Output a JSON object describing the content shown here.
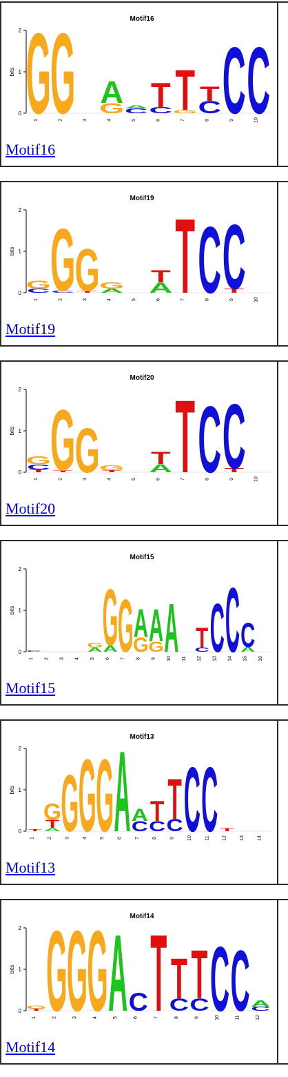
{
  "motifs": [
    {
      "link": "Motif16",
      "title": "Motif16",
      "n": 10,
      "stacks": [
        [
          [
            "G",
            2.0
          ]
        ],
        [
          [
            "G",
            2.0
          ]
        ],
        [],
        [
          [
            "G",
            0.25
          ],
          [
            "A",
            0.55
          ]
        ],
        [
          [
            "C",
            0.12
          ],
          [
            "A",
            0.08
          ]
        ],
        [
          [
            "C",
            0.15
          ],
          [
            "T",
            0.6
          ]
        ],
        [
          [
            "G",
            0.08
          ],
          [
            "T",
            1.0
          ]
        ],
        [
          [
            "C",
            0.3
          ],
          [
            "T",
            0.35
          ]
        ],
        [
          [
            "C",
            1.65
          ]
        ],
        [
          [
            "C",
            1.65
          ]
        ]
      ]
    },
    {
      "link": "Motif19",
      "title": "Motif19",
      "n": 10,
      "stacks": [
        [
          [
            "C",
            0.1
          ],
          [
            "G",
            0.2
          ]
        ],
        [
          [
            "C",
            0.05
          ],
          [
            "G",
            1.55
          ]
        ],
        [
          [
            "T",
            0.05
          ],
          [
            "G",
            1.05
          ]
        ],
        [
          [
            "A",
            0.1
          ],
          [
            "G",
            0.15
          ]
        ],
        [],
        [
          [
            "A",
            0.25
          ],
          [
            "T",
            0.3
          ]
        ],
        [
          [
            "T",
            1.85
          ]
        ],
        [
          [
            "C",
            1.65
          ]
        ],
        [
          [
            "T",
            0.1
          ],
          [
            "C",
            1.6
          ]
        ],
        []
      ]
    },
    {
      "link": "Motif20",
      "title": "Motif20",
      "n": 10,
      "stacks": [
        [
          [
            "T",
            0.07
          ],
          [
            "C",
            0.12
          ],
          [
            "G",
            0.2
          ]
        ],
        [
          [
            "T",
            0.05
          ],
          [
            "G",
            1.5
          ]
        ],
        [
          [
            "G",
            1.1
          ]
        ],
        [
          [
            "T",
            0.05
          ],
          [
            "G",
            0.12
          ]
        ],
        [],
        [
          [
            "A",
            0.2
          ],
          [
            "T",
            0.3
          ]
        ],
        [
          [
            "T",
            1.8
          ]
        ],
        [
          [
            "C",
            1.65
          ]
        ],
        [
          [
            "T",
            0.1
          ],
          [
            "C",
            1.6
          ]
        ],
        []
      ]
    },
    {
      "link": "Motif15",
      "title": "Motif15",
      "n": 16,
      "stacks": [
        [
          [
            "C",
            0.03
          ]
        ],
        [],
        [],
        [],
        [
          [
            "A",
            0.1
          ],
          [
            "G",
            0.12
          ]
        ],
        [
          [
            "A",
            0.15
          ],
          [
            "G",
            1.4
          ]
        ],
        [
          [
            "G",
            1.3
          ]
        ],
        [
          [
            "G",
            0.35
          ],
          [
            "A",
            0.7
          ]
        ],
        [
          [
            "G",
            0.25
          ],
          [
            "A",
            0.8
          ]
        ],
        [
          [
            "A",
            1.2
          ]
        ],
        [],
        [
          [
            "C",
            0.1
          ],
          [
            "T",
            0.5
          ]
        ],
        [
          [
            "C",
            1.2
          ]
        ],
        [
          [
            "C",
            1.6
          ]
        ],
        [
          [
            "A",
            0.12
          ],
          [
            "C",
            0.6
          ]
        ],
        []
      ]
    },
    {
      "link": "Motif13",
      "title": "Motif13",
      "n": 14,
      "stacks": [
        [
          [
            "T",
            0.05
          ]
        ],
        [
          [
            "A",
            0.08
          ],
          [
            "T",
            0.2
          ],
          [
            "G",
            0.4
          ]
        ],
        [
          [
            "G",
            1.4
          ]
        ],
        [
          [
            "G",
            1.8
          ]
        ],
        [
          [
            "G",
            1.8
          ]
        ],
        [
          [
            "A",
            2.0
          ]
        ],
        [
          [
            "C",
            0.25
          ],
          [
            "A",
            0.3
          ]
        ],
        [
          [
            "C",
            0.25
          ],
          [
            "T",
            0.5
          ]
        ],
        [
          [
            "C",
            0.3
          ],
          [
            "T",
            1.0
          ]
        ],
        [
          [
            "C",
            1.6
          ]
        ],
        [
          [
            "C",
            1.6
          ]
        ],
        [
          [
            "T",
            0.08
          ]
        ],
        [],
        []
      ]
    },
    {
      "link": "Motif14",
      "title": "Motif14",
      "n": 12,
      "stacks": [
        [
          [
            "T",
            0.05
          ],
          [
            "G",
            0.08
          ]
        ],
        [
          [
            "G",
            2.0
          ]
        ],
        [
          [
            "G",
            2.0
          ]
        ],
        [
          [
            "G",
            2.0
          ]
        ],
        [
          [
            "A",
            1.9
          ]
        ],
        [
          [
            "C",
            0.45
          ]
        ],
        [
          [
            "T",
            1.9
          ]
        ],
        [
          [
            "C",
            0.3
          ],
          [
            "T",
            1.0
          ]
        ],
        [
          [
            "C",
            0.3
          ],
          [
            "T",
            1.2
          ]
        ],
        [
          [
            "C",
            1.6
          ]
        ],
        [
          [
            "C",
            1.5
          ]
        ],
        [
          [
            "C",
            0.1
          ],
          [
            "A",
            0.15
          ]
        ]
      ]
    }
  ],
  "labels": {
    "bits": "bits",
    "ticks_y": [
      "0",
      "1",
      "2"
    ]
  },
  "colors": {
    "A": "#1ec31e",
    "C": "#1010d8",
    "G": "#f8a81c",
    "T": "#e01010"
  }
}
